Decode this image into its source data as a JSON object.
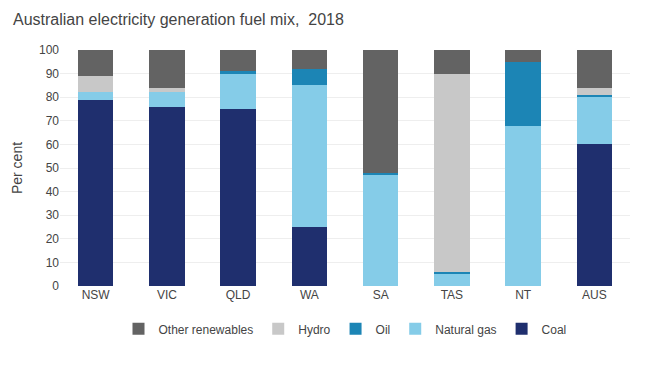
{
  "chart_data": {
    "type": "bar",
    "stacked": true,
    "title": "Australian electricity generation fuel mix,  2018",
    "categories": [
      "NSW",
      "VIC",
      "QLD",
      "WA",
      "SA",
      "TAS",
      "NT",
      "AUS"
    ],
    "series": [
      {
        "name": "Coal",
        "color": "#1f2f6e",
        "values": [
          79,
          76,
          75,
          25,
          0,
          0,
          0,
          60
        ]
      },
      {
        "name": "Natural gas",
        "color": "#85cce8",
        "values": [
          3,
          6,
          15,
          60,
          47,
          5,
          68,
          20
        ]
      },
      {
        "name": "Oil",
        "color": "#1c85b5",
        "values": [
          0,
          0,
          1,
          7,
          1,
          1,
          27,
          1
        ]
      },
      {
        "name": "Hydro",
        "color": "#c8c8c8",
        "values": [
          7,
          2,
          0,
          0,
          0,
          84,
          0,
          3
        ]
      },
      {
        "name": "Other renewables",
        "color": "#636363",
        "values": [
          11,
          16,
          9,
          8,
          52,
          10,
          5,
          16
        ]
      }
    ],
    "ylabel": "Per cent",
    "ylim": [
      0,
      100
    ],
    "yticks": [
      0,
      10,
      20,
      30,
      40,
      50,
      60,
      70,
      80,
      90,
      100
    ],
    "grid": true,
    "legend": "bottom"
  }
}
